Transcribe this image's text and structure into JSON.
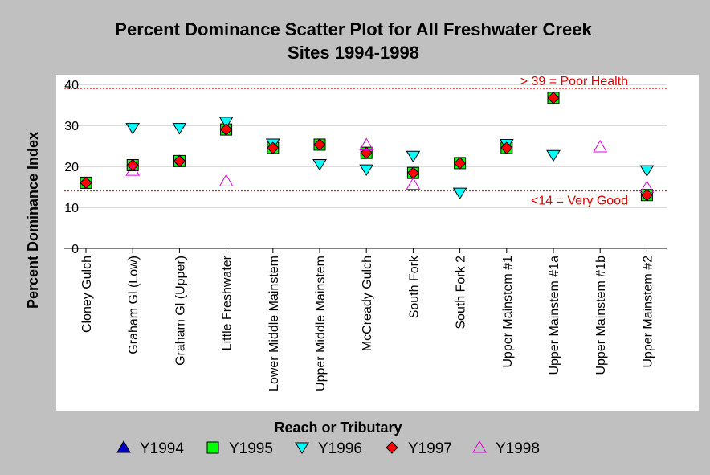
{
  "chart_data": {
    "type": "scatter",
    "title": [
      "Percent Dominance Scatter Plot for All Freshwater Creek",
      "Sites 1994-1998"
    ],
    "xlabel": "Reach or Tributary",
    "ylabel": "Percent Dominance Index",
    "ylim": [
      0,
      40
    ],
    "yticks": [
      "0",
      "10",
      "20",
      "30",
      "40"
    ],
    "grid": true,
    "legend_position": "bottom",
    "categories": [
      "Cloney Gulch",
      "Graham Gl (Low)",
      "Graham Gl (Upper)",
      "Little Freshwater",
      "Lower Middle Mainstem",
      "Upper Middle Mainstem",
      "McCready Gulch",
      "South Fork",
      "South Fork 2",
      "Upper Mainstem #1",
      "Upper Mainstem #1a",
      "Upper Mainstem #1b",
      "Upper Mainstem #2"
    ],
    "series": [
      {
        "name": "Y1994",
        "marker": "triangle-up",
        "color": "#0000c8",
        "filled": true,
        "values": [
          null,
          null,
          null,
          null,
          null,
          null,
          null,
          null,
          null,
          null,
          null,
          null,
          null
        ]
      },
      {
        "name": "Y1995",
        "marker": "square",
        "color": "#00ff00",
        "filled": true,
        "values": [
          16,
          20.3,
          21.3,
          29,
          24.5,
          25.3,
          23.3,
          18.4,
          20.8,
          24.5,
          36.7,
          null,
          13
        ]
      },
      {
        "name": "Y1996",
        "marker": "triangle-down",
        "color": "#00ffff",
        "filled": true,
        "values": [
          null,
          29.3,
          29.3,
          30.8,
          25.5,
          20.5,
          19.2,
          22.5,
          13.5,
          25.4,
          22.7,
          null,
          19
        ]
      },
      {
        "name": "Y1997",
        "marker": "diamond",
        "color": "#ff0000",
        "filled": true,
        "values": [
          16,
          20.3,
          21.3,
          29,
          24.5,
          25.3,
          23.3,
          18.4,
          20.8,
          24.5,
          36.7,
          null,
          13
        ]
      },
      {
        "name": "Y1998",
        "marker": "triangle-up",
        "color": "#e000e0",
        "filled": false,
        "values": [
          null,
          19,
          null,
          16.4,
          null,
          null,
          25.2,
          15.6,
          null,
          null,
          null,
          24.7,
          14.8
        ]
      }
    ],
    "reference_lines": [
      {
        "value": 39,
        "label": "> 39 = Poor Health",
        "color": "#e00000"
      },
      {
        "value": 14,
        "label": "<14 = Very Good",
        "color": "#e00000"
      }
    ]
  }
}
